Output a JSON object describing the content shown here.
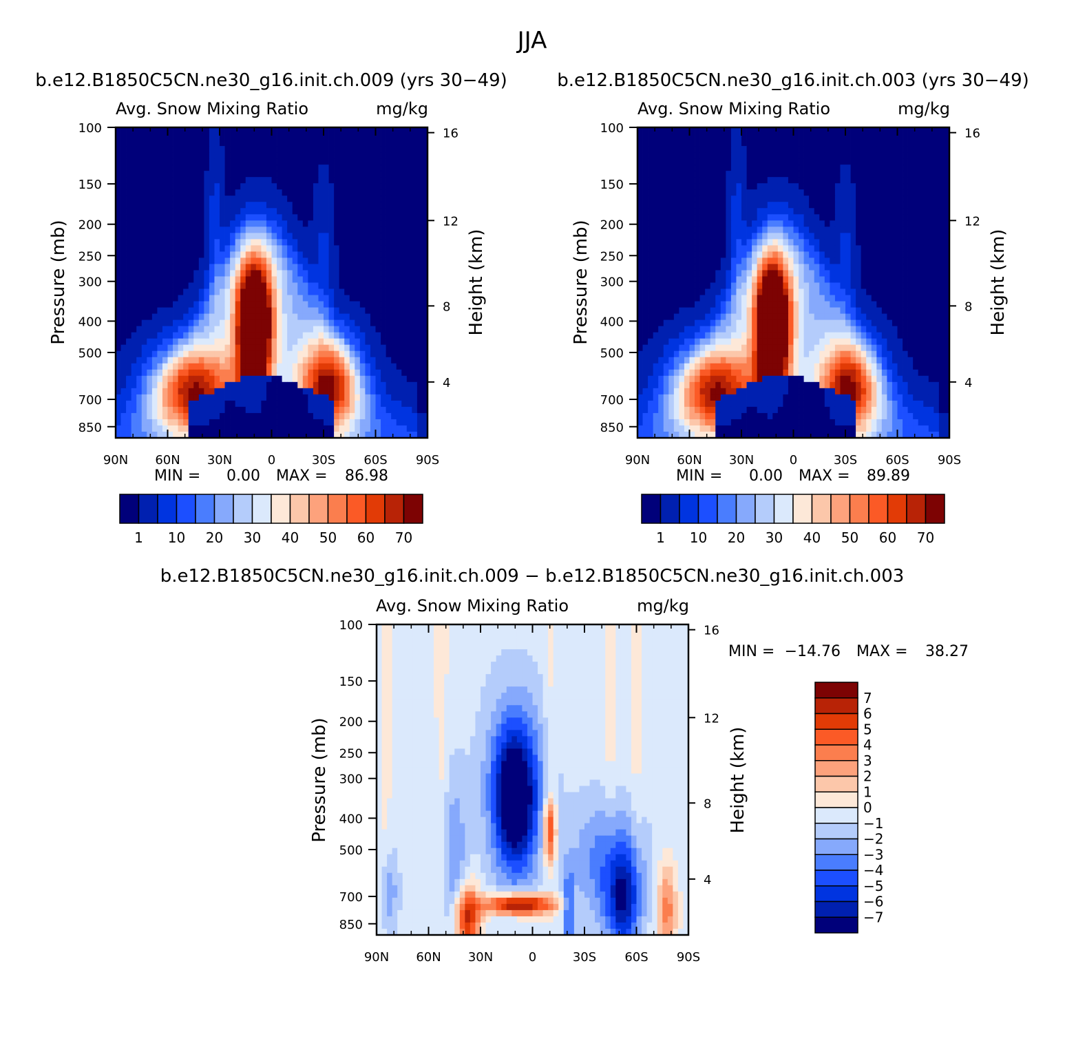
{
  "figure": {
    "title": "JJA"
  },
  "chart_data": [
    {
      "type": "heatmap",
      "title": "b.e12.B1850C5CN.ne30_g16.init.ch.009 (yrs 30−49)",
      "subtitle_left": "Avg. Snow Mixing Ratio",
      "subtitle_right": "mg/kg",
      "ylabel": "Pressure (mb)",
      "y2label": "Height (km)",
      "x_ticks": [
        "90N",
        "60N",
        "30N",
        "0",
        "30S",
        "60S",
        "90S"
      ],
      "y_ticks": [
        "100",
        "150",
        "200",
        "250",
        "300",
        "400",
        "500",
        "700",
        "850"
      ],
      "y2_ticks": [
        "16",
        "12",
        "8",
        "4"
      ],
      "xlim": [
        -90,
        90
      ],
      "ylim": [
        850,
        100
      ],
      "y_scale": "log",
      "stats": {
        "min_label": "MIN =",
        "min": "0.00",
        "max_label": "MAX =",
        "max": "86.98"
      },
      "colorbar": {
        "orientation": "horizontal",
        "labels": [
          "1",
          "10",
          "20",
          "30",
          "40",
          "50",
          "60",
          "70"
        ],
        "colors": [
          "#00007a",
          "#0020b0",
          "#0034e0",
          "#1c4fff",
          "#4a7dfe",
          "#86a9fc",
          "#b4ccfb",
          "#dbe9fc",
          "#fde8d8",
          "#fcc7aa",
          "#fda27c",
          "#fb7e4e",
          "#fb5a26",
          "#e23b06",
          "#b82306",
          "#7d0303"
        ]
      },
      "peaks": [
        {
          "name": "tropical max",
          "lat": 10,
          "p": 430,
          "value": 86.98
        },
        {
          "name": "NH midlatitude",
          "lat": 45,
          "p": 620,
          "value": 68
        },
        {
          "name": "SH midlatitude",
          "lat": -33,
          "p": 600,
          "value": 70
        }
      ]
    },
    {
      "type": "heatmap",
      "title": "b.e12.B1850C5CN.ne30_g16.init.ch.003 (yrs 30−49)",
      "subtitle_left": "Avg. Snow Mixing Ratio",
      "subtitle_right": "mg/kg",
      "ylabel": "Pressure (mb)",
      "y2label": "Height (km)",
      "x_ticks": [
        "90N",
        "60N",
        "30N",
        "0",
        "30S",
        "60S",
        "90S"
      ],
      "y_ticks": [
        "100",
        "150",
        "200",
        "250",
        "300",
        "400",
        "500",
        "700",
        "850"
      ],
      "y2_ticks": [
        "16",
        "12",
        "8",
        "4"
      ],
      "xlim": [
        -90,
        90
      ],
      "ylim": [
        850,
        100
      ],
      "y_scale": "log",
      "stats": {
        "min_label": "MIN =",
        "min": "0.00",
        "max_label": "MAX =",
        "max": "89.89"
      },
      "colorbar": {
        "orientation": "horizontal",
        "labels": [
          "1",
          "10",
          "20",
          "30",
          "40",
          "50",
          "60",
          "70"
        ],
        "colors": [
          "#00007a",
          "#0020b0",
          "#0034e0",
          "#1c4fff",
          "#4a7dfe",
          "#86a9fc",
          "#b4ccfb",
          "#dbe9fc",
          "#fde8d8",
          "#fcc7aa",
          "#fda27c",
          "#fb7e4e",
          "#fb5a26",
          "#e23b06",
          "#b82306",
          "#7d0303"
        ]
      },
      "peaks": [
        {
          "name": "tropical max",
          "lat": 12,
          "p": 430,
          "value": 89.89
        },
        {
          "name": "NH midlatitude",
          "lat": 45,
          "p": 620,
          "value": 70
        },
        {
          "name": "SH midlatitude",
          "lat": -32,
          "p": 610,
          "value": 72
        }
      ]
    },
    {
      "type": "heatmap",
      "title": "b.e12.B1850C5CN.ne30_g16.init.ch.009 − b.e12.B1850C5CN.ne30_g16.init.ch.003",
      "subtitle_left": "Avg. Snow Mixing Ratio",
      "subtitle_right": "mg/kg",
      "ylabel": "Pressure (mb)",
      "y2label": "Height (km)",
      "x_ticks": [
        "90N",
        "60N",
        "30N",
        "0",
        "30S",
        "60S",
        "90S"
      ],
      "y_ticks": [
        "100",
        "150",
        "200",
        "250",
        "300",
        "400",
        "500",
        "700",
        "850"
      ],
      "y2_ticks": [
        "16",
        "12",
        "8",
        "4"
      ],
      "xlim": [
        -90,
        90
      ],
      "ylim": [
        850,
        100
      ],
      "y_scale": "log",
      "stats": {
        "min_label": "MIN =",
        "min": "−14.76",
        "max_label": "MAX =",
        "max": "38.27"
      },
      "colorbar": {
        "orientation": "vertical",
        "labels": [
          "7",
          "6",
          "5",
          "4",
          "3",
          "2",
          "1",
          "0",
          "−1",
          "−2",
          "−3",
          "−4",
          "−5",
          "−6",
          "−7"
        ],
        "colors": [
          "#7d0303",
          "#b82306",
          "#e23b06",
          "#fb5a26",
          "#fb7e4e",
          "#fda27c",
          "#fcc7aa",
          "#fde8d8",
          "#dbe9fc",
          "#b4ccfb",
          "#86a9fc",
          "#4a7dfe",
          "#1c4fff",
          "#0034e0",
          "#0020b0",
          "#00007a"
        ]
      },
      "features": [
        {
          "name": "positive band",
          "lat": 8,
          "p": 690,
          "value": 8
        },
        {
          "name": "positive core",
          "lat": -10,
          "p": 450,
          "value": 6
        },
        {
          "name": "negative column",
          "lat": 8,
          "p": 400,
          "value": -7
        },
        {
          "name": "negative SH",
          "lat": -50,
          "p": 650,
          "value": -5
        }
      ]
    }
  ]
}
